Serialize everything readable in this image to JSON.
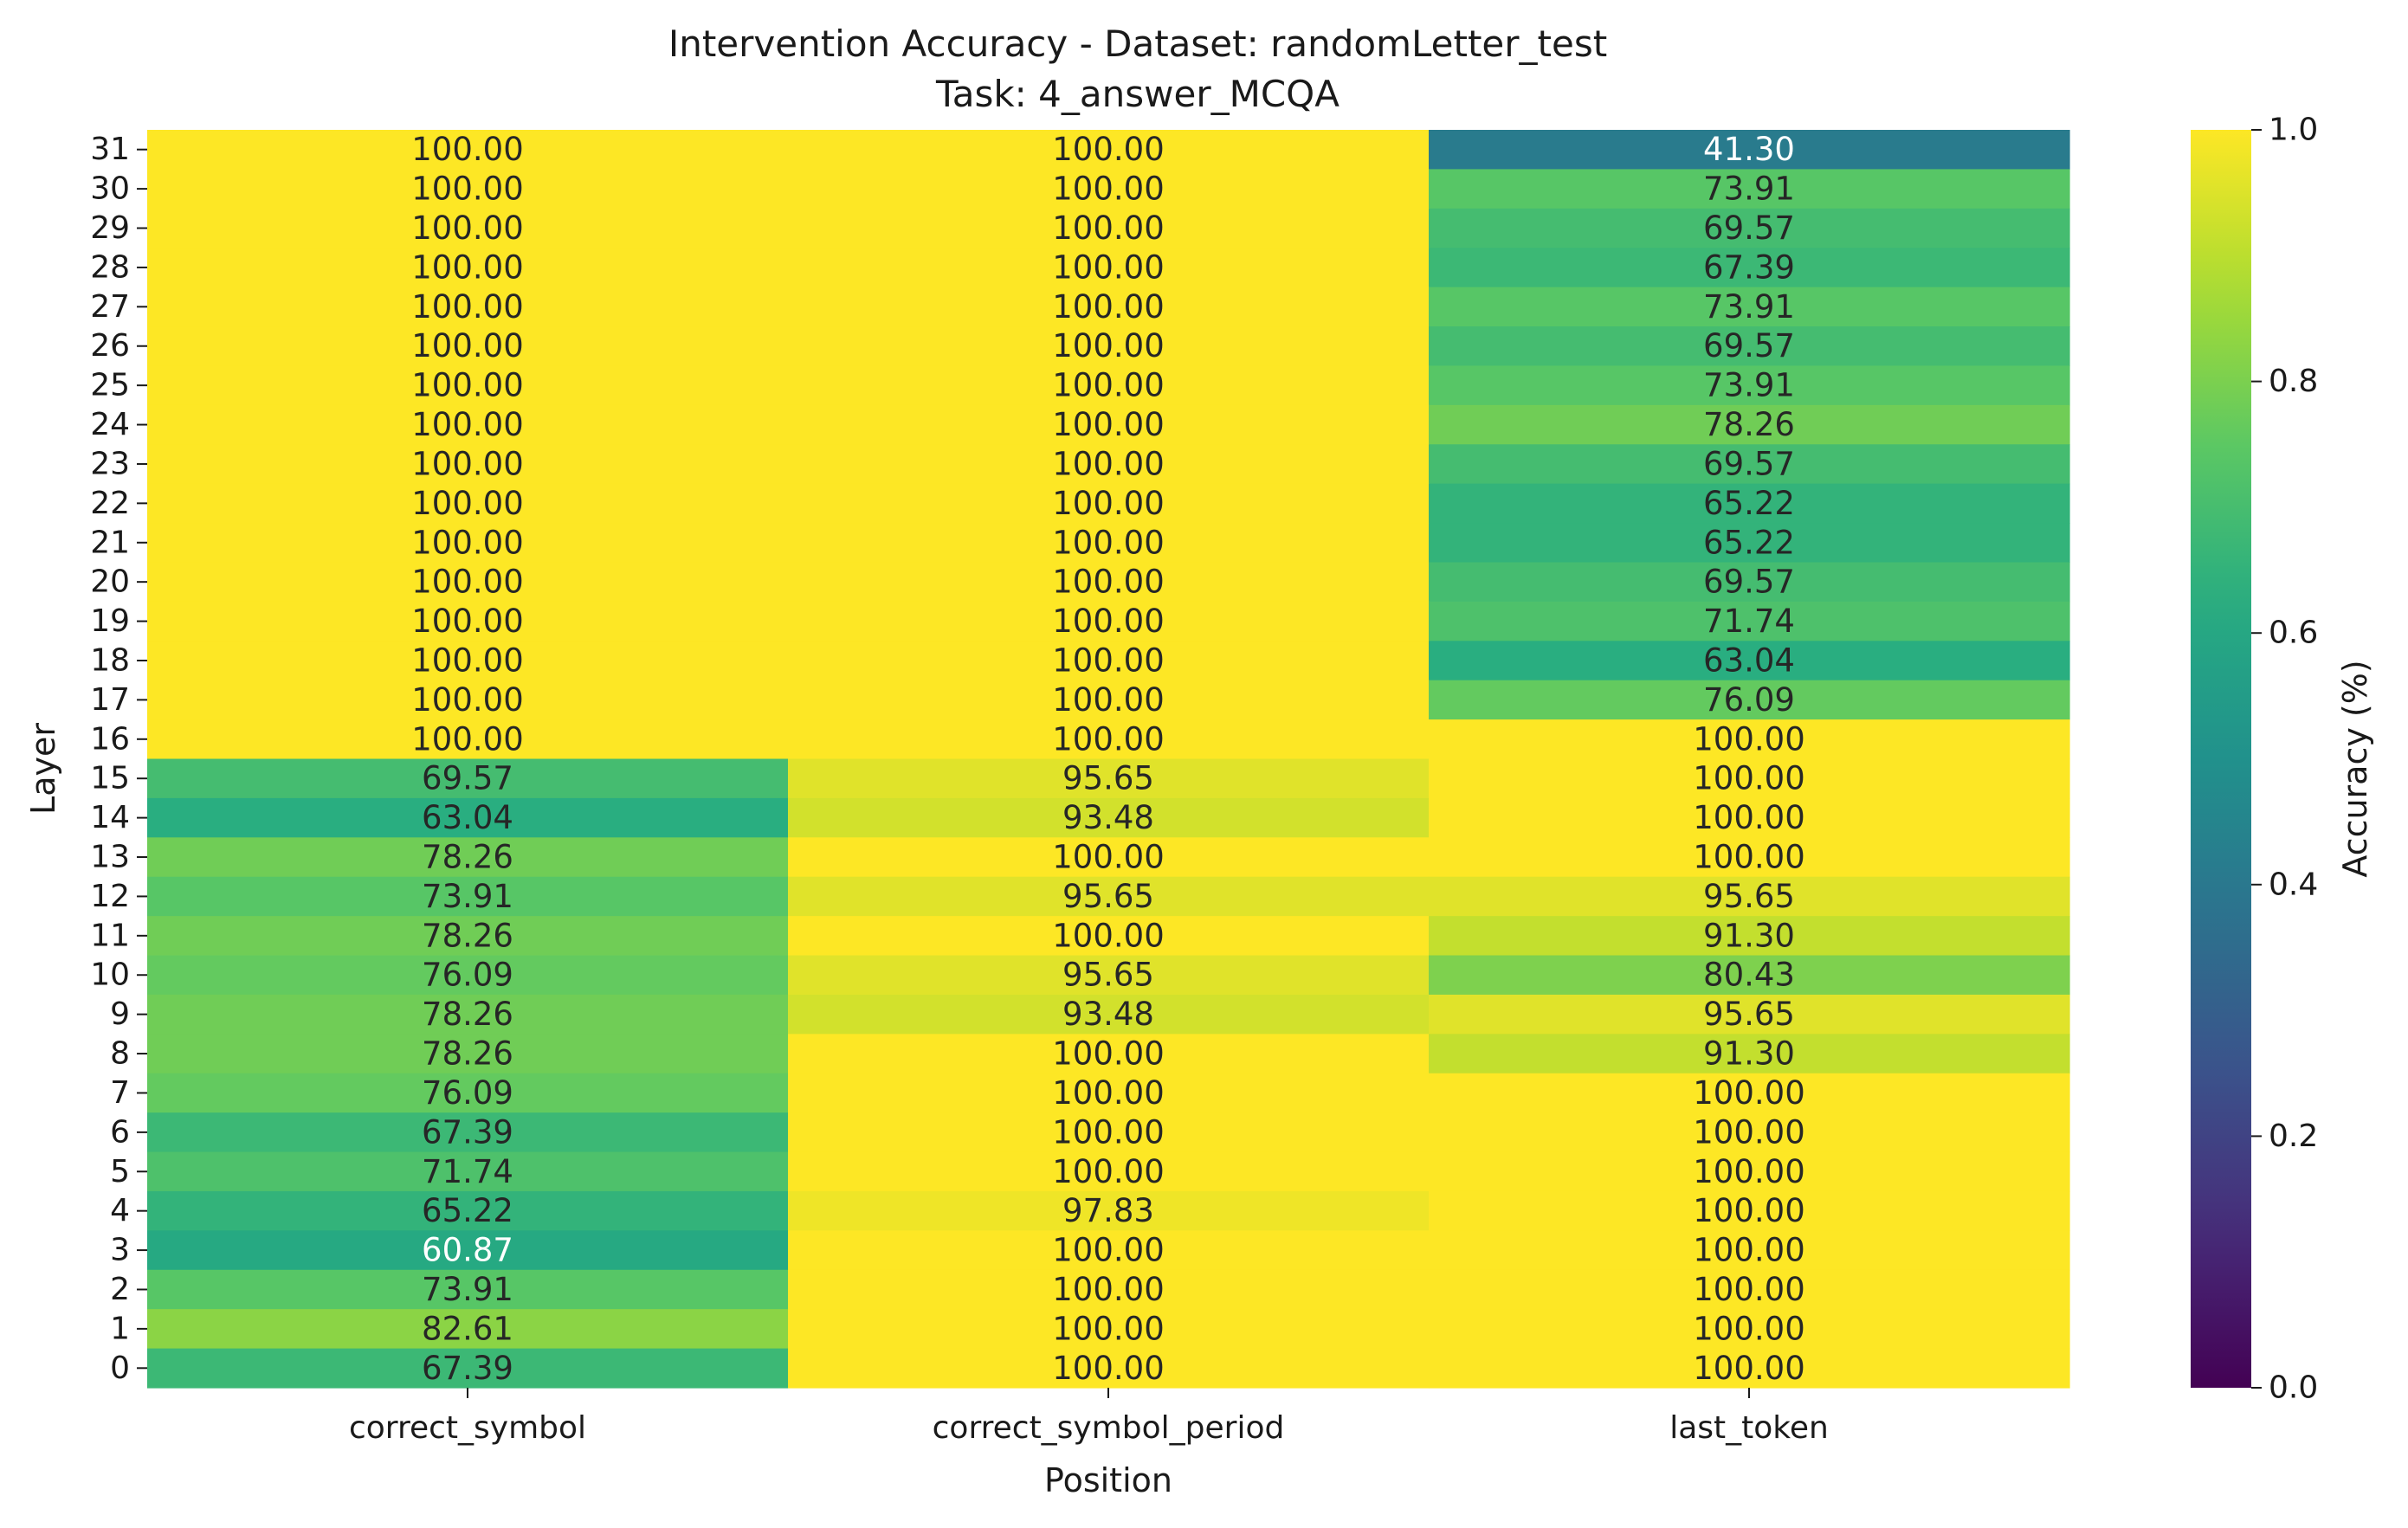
{
  "chart_data": {
    "type": "heatmap",
    "title": "Intervention Accuracy - Dataset: randomLetter_test",
    "subtitle": "Task: 4_answer_MCQA",
    "xlabel": "Position",
    "ylabel": "Layer",
    "x_categories": [
      "correct_symbol",
      "correct_symbol_period",
      "last_token"
    ],
    "y_categories": [
      "31",
      "30",
      "29",
      "28",
      "27",
      "26",
      "25",
      "24",
      "23",
      "22",
      "21",
      "20",
      "19",
      "18",
      "17",
      "16",
      "15",
      "14",
      "13",
      "12",
      "11",
      "10",
      "9",
      "8",
      "7",
      "6",
      "5",
      "4",
      "3",
      "2",
      "1",
      "0"
    ],
    "values": [
      [
        100.0,
        100.0,
        41.3
      ],
      [
        100.0,
        100.0,
        73.91
      ],
      [
        100.0,
        100.0,
        69.57
      ],
      [
        100.0,
        100.0,
        67.39
      ],
      [
        100.0,
        100.0,
        73.91
      ],
      [
        100.0,
        100.0,
        69.57
      ],
      [
        100.0,
        100.0,
        73.91
      ],
      [
        100.0,
        100.0,
        78.26
      ],
      [
        100.0,
        100.0,
        69.57
      ],
      [
        100.0,
        100.0,
        65.22
      ],
      [
        100.0,
        100.0,
        65.22
      ],
      [
        100.0,
        100.0,
        69.57
      ],
      [
        100.0,
        100.0,
        71.74
      ],
      [
        100.0,
        100.0,
        63.04
      ],
      [
        100.0,
        100.0,
        76.09
      ],
      [
        100.0,
        100.0,
        100.0
      ],
      [
        69.57,
        95.65,
        100.0
      ],
      [
        63.04,
        93.48,
        100.0
      ],
      [
        78.26,
        100.0,
        100.0
      ],
      [
        73.91,
        95.65,
        95.65
      ],
      [
        78.26,
        100.0,
        91.3
      ],
      [
        76.09,
        95.65,
        80.43
      ],
      [
        78.26,
        93.48,
        95.65
      ],
      [
        78.26,
        100.0,
        91.3
      ],
      [
        76.09,
        100.0,
        100.0
      ],
      [
        67.39,
        100.0,
        100.0
      ],
      [
        71.74,
        100.0,
        100.0
      ],
      [
        65.22,
        97.83,
        100.0
      ],
      [
        60.87,
        100.0,
        100.0
      ],
      [
        73.91,
        100.0,
        100.0
      ],
      [
        82.61,
        100.0,
        100.0
      ],
      [
        67.39,
        100.0,
        100.0
      ]
    ],
    "colormap": "viridis",
    "colorbar": {
      "label": "Accuracy (%)",
      "range": [
        0.0,
        1.0
      ],
      "ticks": [
        "0.0",
        "0.2",
        "0.4",
        "0.6",
        "0.8",
        "1.0"
      ]
    }
  }
}
